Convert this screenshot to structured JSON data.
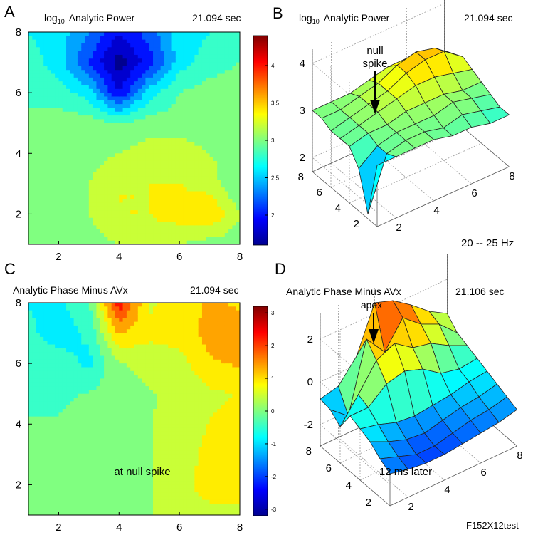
{
  "colors": {
    "cmap": [
      "#00008f",
      "#0000ff",
      "#0080ff",
      "#00ffff",
      "#80ff80",
      "#ffff00",
      "#ff8000",
      "#ff0000",
      "#800000"
    ]
  },
  "chart_data": [
    {
      "id": "A",
      "type": "heatmap",
      "panel_letter": "A",
      "title_prefix": "log",
      "title_sub": "10",
      "title_main": "Analytic Power",
      "time_label": "21.094 sec",
      "xlim": [
        1,
        8
      ],
      "ylim": [
        1,
        8
      ],
      "xticks": [
        2,
        4,
        6,
        8
      ],
      "yticks": [
        2,
        4,
        6,
        8
      ],
      "x": [
        1,
        2,
        3,
        4,
        5,
        6,
        7,
        8
      ],
      "y": [
        1,
        2,
        3,
        4,
        5,
        6,
        7,
        8
      ],
      "z": [
        [
          3.0,
          3.0,
          3.0,
          3.1,
          3.2,
          3.1,
          3.0,
          3.0
        ],
        [
          3.0,
          3.0,
          3.1,
          3.3,
          3.3,
          3.4,
          3.5,
          3.1
        ],
        [
          3.0,
          3.0,
          3.1,
          3.3,
          3.3,
          3.3,
          3.2,
          2.9
        ],
        [
          3.0,
          3.0,
          3.0,
          3.1,
          3.2,
          3.2,
          3.1,
          3.0
        ],
        [
          2.9,
          3.0,
          3.0,
          2.9,
          3.0,
          3.0,
          3.0,
          3.0
        ],
        [
          2.9,
          2.8,
          2.6,
          1.9,
          2.6,
          2.9,
          3.0,
          3.0
        ],
        [
          2.8,
          2.6,
          2.1,
          1.6,
          2.0,
          2.6,
          2.8,
          2.9
        ],
        [
          2.7,
          2.6,
          2.3,
          1.9,
          2.2,
          2.6,
          2.7,
          2.8
        ]
      ],
      "colorbar": {
        "min": 1.6,
        "max": 4.4,
        "ticks": [
          2,
          2.5,
          3,
          3.5,
          4
        ],
        "tick_labels": [
          "2",
          "2.5",
          "3",
          "3.5",
          "4"
        ]
      }
    },
    {
      "id": "B",
      "type": "surface",
      "panel_letter": "B",
      "title_prefix": "log",
      "title_sub": "10",
      "title_main": "Analytic Power",
      "time_label": "21.094 sec",
      "zlim": [
        1.7,
        4.3
      ],
      "zticks": [
        2,
        3,
        4
      ],
      "xticks": [
        2,
        4,
        6,
        8
      ],
      "yticks": [
        4,
        6,
        8
      ],
      "annotation": [
        "null",
        "spike"
      ],
      "xlabel": "20 -- 25 Hz",
      "z": [
        [
          3.0,
          3.0,
          3.0,
          3.0,
          2.9,
          2.9,
          2.8,
          2.8
        ],
        [
          1.8,
          2.9,
          3.0,
          3.0,
          2.9,
          3.0,
          2.9,
          2.8
        ],
        [
          2.6,
          2.9,
          3.0,
          3.0,
          3.0,
          3.1,
          3.0,
          2.9
        ],
        [
          2.9,
          3.0,
          3.0,
          3.1,
          3.1,
          3.1,
          3.0,
          3.0
        ],
        [
          2.9,
          3.0,
          3.1,
          3.2,
          3.3,
          3.3,
          3.2,
          3.1
        ],
        [
          2.9,
          3.0,
          3.1,
          3.2,
          3.4,
          3.5,
          3.5,
          3.2
        ],
        [
          3.0,
          3.0,
          3.1,
          3.2,
          3.4,
          3.5,
          3.4,
          3.1
        ],
        [
          3.0,
          3.0,
          3.0,
          3.1,
          3.2,
          3.2,
          3.1,
          3.0
        ]
      ]
    },
    {
      "id": "C",
      "type": "heatmap",
      "panel_letter": "C",
      "title_main": "Analytic Phase Minus AVx",
      "time_label": "21.094 sec",
      "annotation": "at null spike",
      "xlim": [
        1,
        8
      ],
      "ylim": [
        1,
        8
      ],
      "xticks": [
        2,
        4,
        6,
        8
      ],
      "yticks": [
        2,
        4,
        6,
        8
      ],
      "x": [
        1,
        2,
        3,
        4,
        5,
        6,
        7,
        8
      ],
      "y": [
        1,
        2,
        3,
        4,
        5,
        6,
        7,
        8
      ],
      "z": [
        [
          0.0,
          0.0,
          0.0,
          0.0,
          0.2,
          0.6,
          0.6,
          0.6
        ],
        [
          0.0,
          0.0,
          0.0,
          0.0,
          0.2,
          0.6,
          0.8,
          0.8
        ],
        [
          -0.2,
          -0.2,
          -0.1,
          0.0,
          0.2,
          0.5,
          0.8,
          0.8
        ],
        [
          -0.2,
          -0.2,
          -0.1,
          0.0,
          0.2,
          0.4,
          0.7,
          0.8
        ],
        [
          -0.3,
          -0.3,
          -0.2,
          0.0,
          0.2,
          0.3,
          0.6,
          0.7
        ],
        [
          -0.4,
          -0.5,
          -0.8,
          0.2,
          0.4,
          0.5,
          1.1,
          1.2
        ],
        [
          -0.6,
          -0.9,
          -0.6,
          1.2,
          0.8,
          0.9,
          1.3,
          1.3
        ],
        [
          -0.7,
          -0.8,
          -0.3,
          2.4,
          0.6,
          0.9,
          1.2,
          1.1
        ]
      ],
      "colorbar": {
        "min": -3.2,
        "max": 3.2,
        "ticks": [
          -3,
          -2,
          -1,
          0,
          1,
          2,
          3
        ],
        "tick_labels": [
          "-3",
          "-2",
          "-1",
          "0",
          "1",
          "2",
          "3"
        ]
      }
    },
    {
      "id": "D",
      "type": "surface",
      "panel_letter": "D",
      "title_main": "Analytic Phase Minus AVx",
      "time_label": "21.106 sec",
      "annotation": "apex",
      "annotation2": "12 ms later",
      "footer": "F152X12test",
      "zlim": [
        -3.0,
        3.2
      ],
      "zticks": [
        -2,
        0,
        2
      ],
      "xticks": [
        2,
        4,
        6,
        8
      ],
      "yticks": [
        4,
        6,
        8
      ],
      "z": [
        [
          -1.5,
          -1.7,
          -1.8,
          -1.8,
          -1.7,
          -1.6,
          -1.5,
          -1.3
        ],
        [
          -1.2,
          -1.5,
          -1.8,
          -1.8,
          -1.6,
          -1.4,
          -1.3,
          -1.1
        ],
        [
          -0.8,
          -1.2,
          -1.5,
          -1.6,
          -1.4,
          -1.2,
          -1.1,
          -0.9
        ],
        [
          -0.6,
          -0.8,
          -1.1,
          -1.2,
          -1.1,
          -1.0,
          -0.8,
          -0.7
        ],
        [
          -0.4,
          -0.4,
          0.3,
          0.5,
          0.2,
          -0.4,
          -0.6,
          -0.5
        ],
        [
          -1.3,
          -0.2,
          1.0,
          1.4,
          0.8,
          0.6,
          0.1,
          -0.3
        ],
        [
          -0.9,
          -1.6,
          1.6,
          0.6,
          1.8,
          1.1,
          0.7,
          -0.1
        ],
        [
          -0.8,
          -0.6,
          0.4,
          2.5,
          2.2,
          1.6,
          0.9,
          0.4
        ]
      ]
    }
  ]
}
